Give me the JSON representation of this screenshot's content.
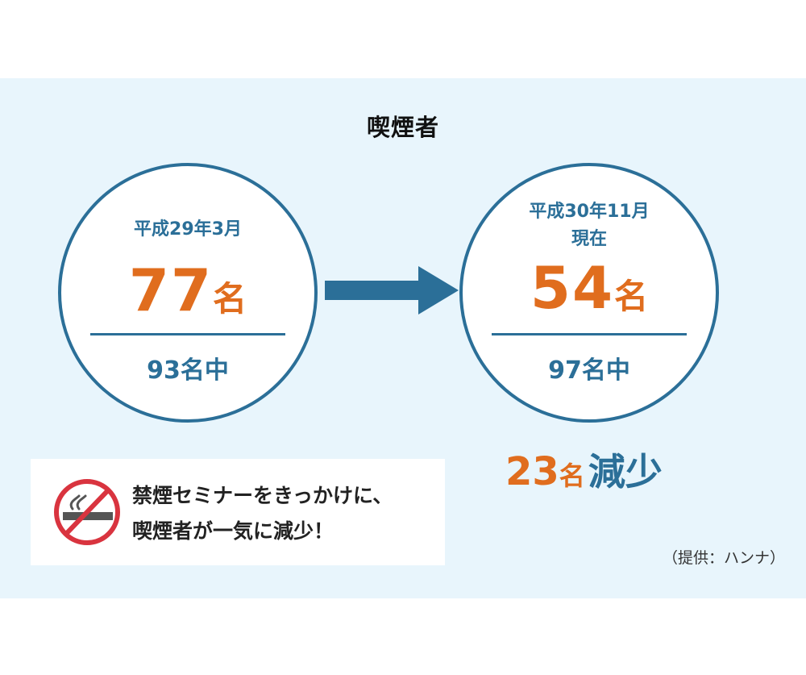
{
  "title": "喫煙者",
  "before": {
    "date_line1": "平成29年3月",
    "date_line2": "",
    "value": "77",
    "unit": "名",
    "total": "93名中"
  },
  "after": {
    "date_line1": "平成30年11月",
    "date_line2": "現在",
    "value": "54",
    "unit": "名",
    "total": "97名中"
  },
  "reduction": {
    "value": "23",
    "unit": "名",
    "word": "減少"
  },
  "note": {
    "line1": "禁煙セミナーをきっかけに、",
    "line2": "喫煙者が一気に減少！",
    "icon": "no-smoking-icon"
  },
  "credit": "（提供：ハンナ）",
  "colors": {
    "accent_blue": "#2b6f98",
    "accent_orange": "#e06d1e",
    "panel_bg": "#e8f5fc",
    "no_smoking_red": "#d9343f"
  }
}
